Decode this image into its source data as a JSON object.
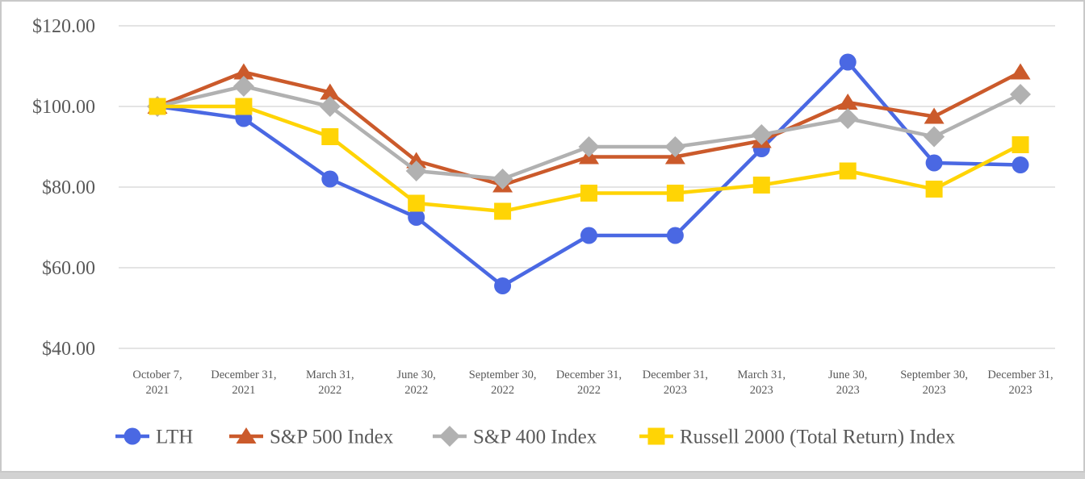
{
  "chart_data": {
    "type": "line",
    "title": "",
    "xlabel": "",
    "ylabel": "",
    "ylim": [
      40,
      120
    ],
    "grid": true,
    "legend_position": "bottom",
    "y_axis": {
      "tick_values": [
        120,
        100,
        80,
        60,
        40
      ],
      "tick_labels": [
        "$120.00",
        "$100.00",
        "$80.00",
        "$60.00",
        "$40.00"
      ]
    },
    "categories": [
      "October 7, 2021",
      "December 31, 2021",
      "March 31, 2022",
      "June 30, 2022",
      "September 30, 2022",
      "December 31, 2022",
      "December 31, 2023",
      "March 31, 2023",
      "June 30, 2023",
      "September 30, 2023",
      "December 31, 2023"
    ],
    "series": [
      {
        "name": "LTH",
        "marker": "circle",
        "color": "#4a68e3",
        "values": [
          100,
          97,
          82,
          72.5,
          55.5,
          68,
          68,
          89.5,
          111,
          86,
          85.5
        ]
      },
      {
        "name": "S&P 500 Index",
        "marker": "triangle",
        "color": "#cb5a2b",
        "values": [
          100,
          108.5,
          103.5,
          86.5,
          80.5,
          87.5,
          87.5,
          91.5,
          101,
          97.5,
          108.5
        ]
      },
      {
        "name": "S&P 400 Index",
        "marker": "diamond",
        "color": "#b1b1b1",
        "values": [
          100,
          105,
          100,
          84,
          82,
          90,
          90,
          93,
          97,
          92.5,
          103
        ]
      },
      {
        "name": "Russell 2000 (Total Return) Index",
        "marker": "square",
        "color": "#ffd405",
        "values": [
          100,
          100,
          92.5,
          76,
          74,
          78.5,
          78.5,
          80.5,
          84,
          79.5,
          90.5
        ]
      }
    ]
  },
  "style": {
    "grid_color": "#dcdcdc",
    "axis_text_color": "#595959",
    "page_border_color": "#c9c9c9"
  }
}
